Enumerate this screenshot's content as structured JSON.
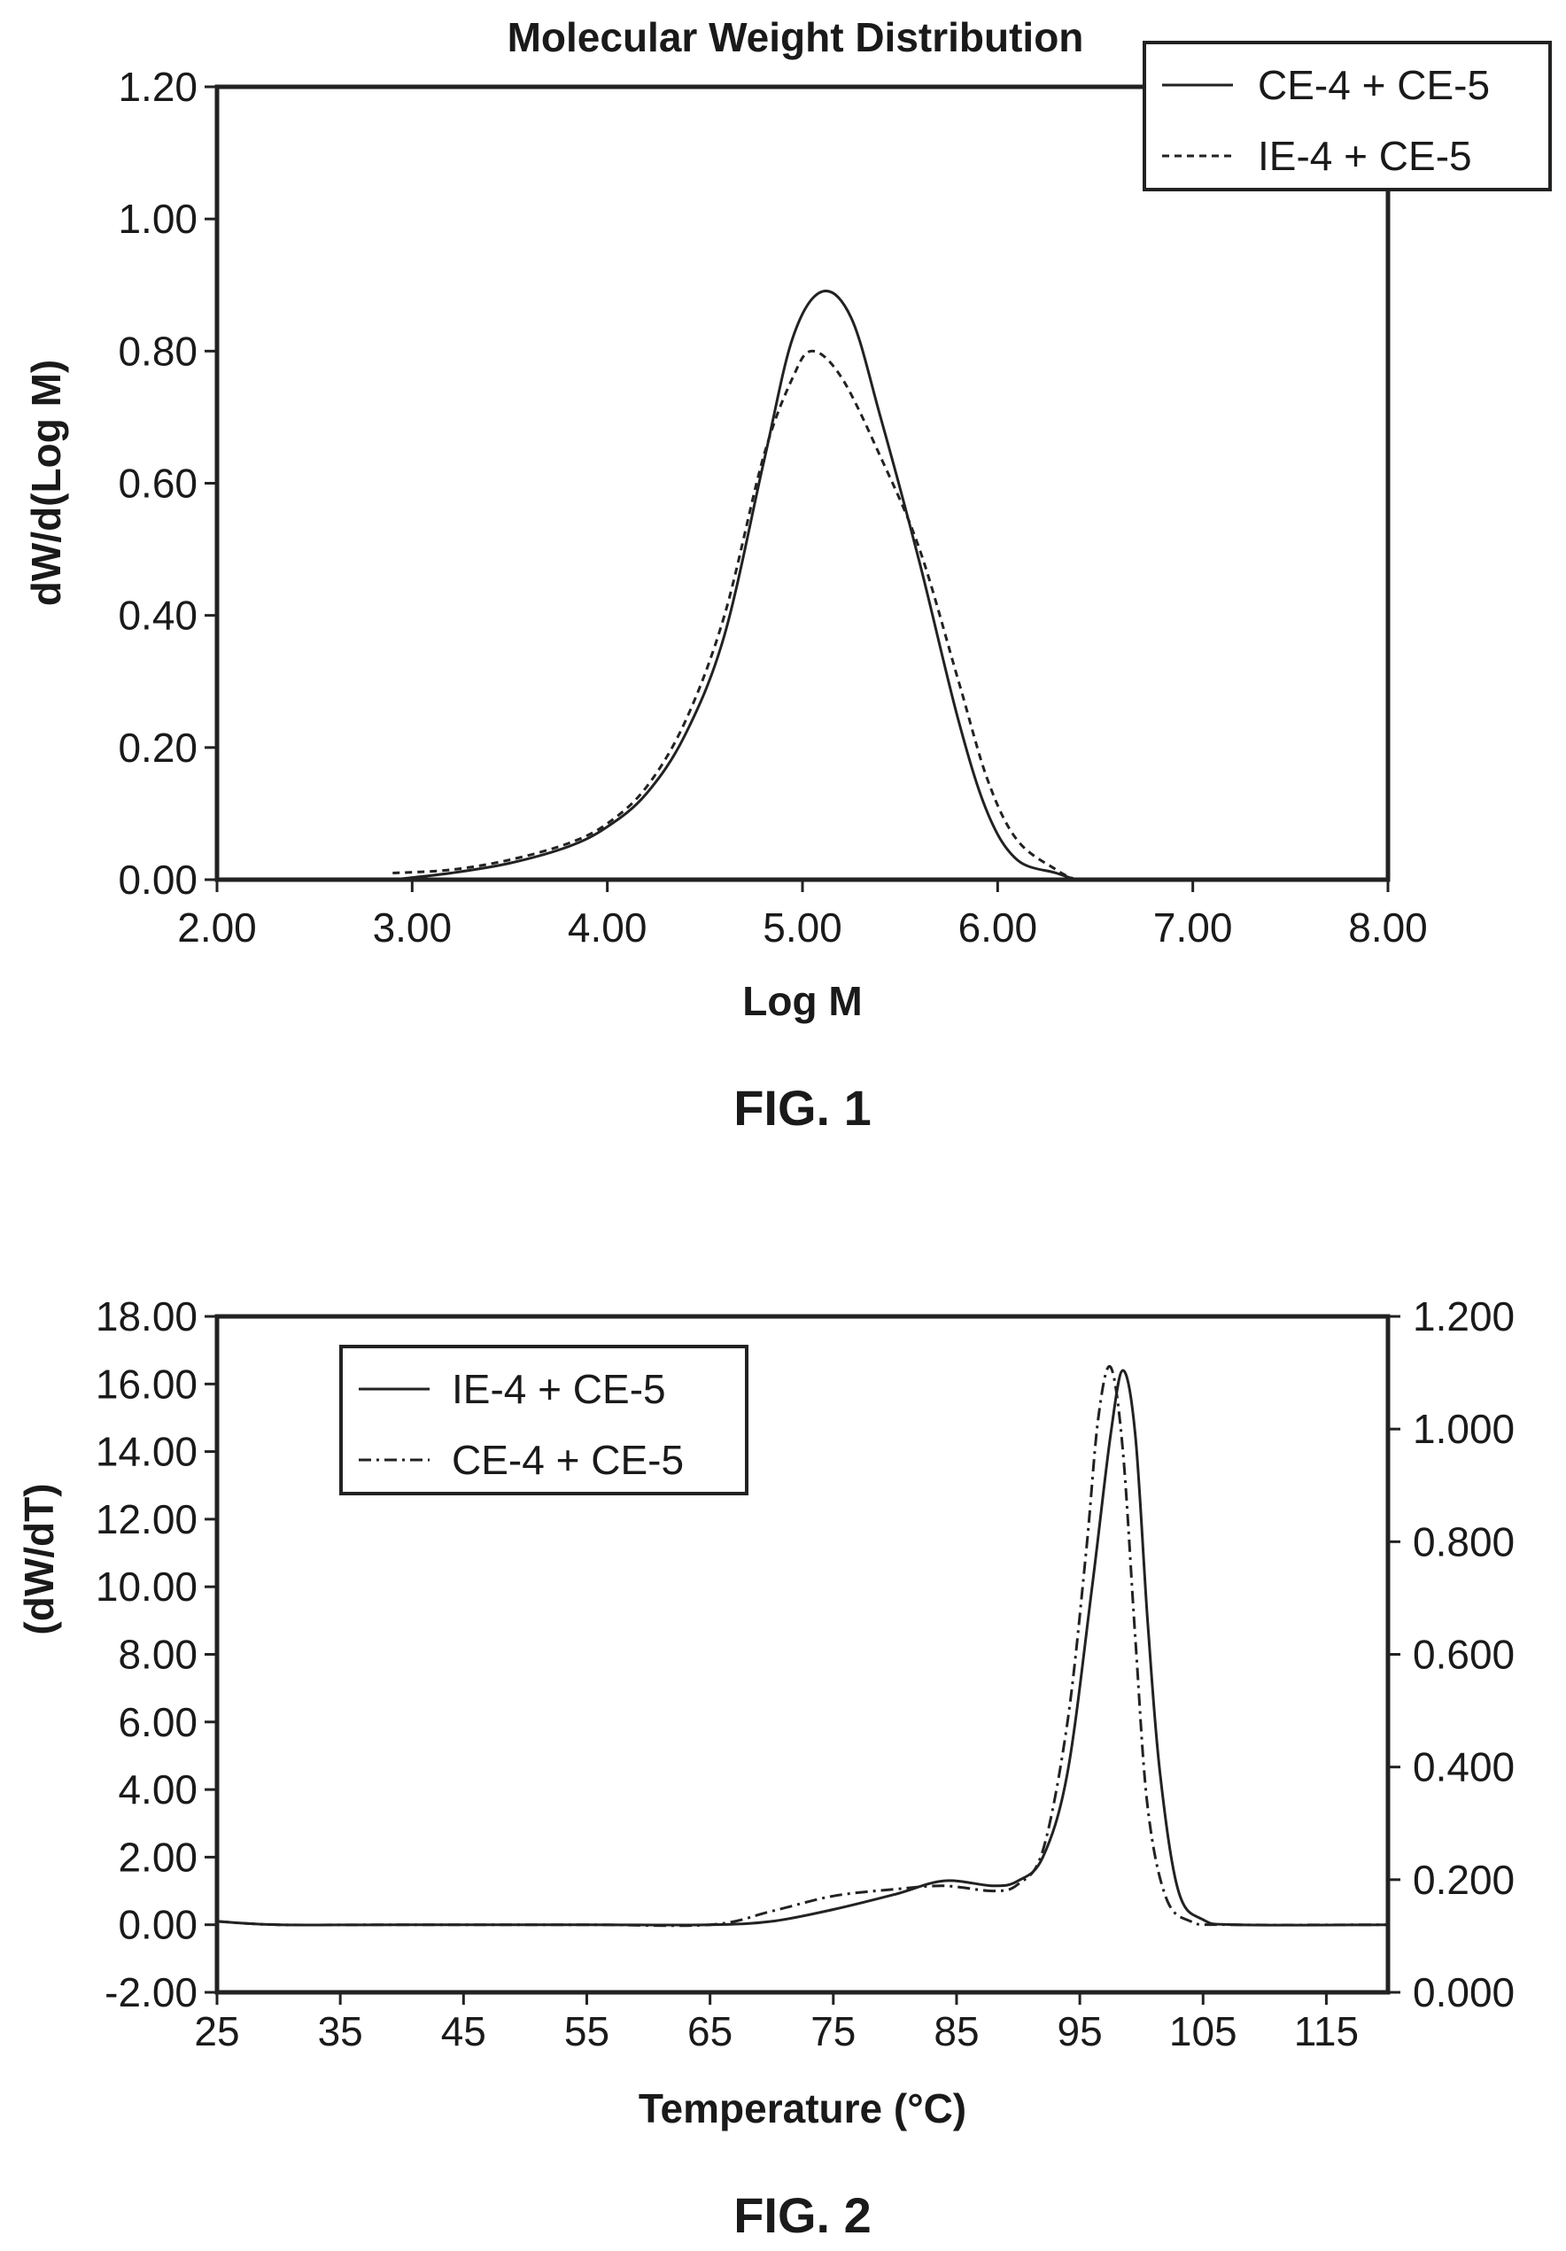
{
  "charts": {
    "fig1": {
      "fig_label": "FIG. 1"
    },
    "fig2": {
      "fig_label": "FIG. 2"
    }
  },
  "chart_data": [
    {
      "type": "line",
      "title": "Molecular Weight Distribution",
      "xlabel": "Log M",
      "ylabel": "dW/d(Log M)",
      "xlim": [
        2.0,
        8.0
      ],
      "ylim": [
        0.0,
        1.2
      ],
      "xticks": [
        "2.00",
        "3.00",
        "4.00",
        "5.00",
        "6.00",
        "7.00",
        "8.00"
      ],
      "yticks": [
        "0.00",
        "0.20",
        "0.40",
        "0.60",
        "0.80",
        "1.00",
        "1.20"
      ],
      "grid": false,
      "legend": "top-right",
      "series": [
        {
          "name": "CE-4 + CE-5",
          "style": "solid",
          "x": [
            2.9,
            3.2,
            3.5,
            3.8,
            4.0,
            4.2,
            4.4,
            4.6,
            4.8,
            4.95,
            5.1,
            5.25,
            5.4,
            5.6,
            5.8,
            5.95,
            6.1,
            6.3,
            6.4
          ],
          "y": [
            0.0,
            0.01,
            0.025,
            0.05,
            0.08,
            0.13,
            0.22,
            0.37,
            0.63,
            0.82,
            0.89,
            0.85,
            0.7,
            0.48,
            0.24,
            0.1,
            0.03,
            0.01,
            0.0
          ]
        },
        {
          "name": "IE-4 + CE-5",
          "style": "dashed",
          "x": [
            2.9,
            3.2,
            3.5,
            3.8,
            4.0,
            4.2,
            4.4,
            4.6,
            4.8,
            4.95,
            5.05,
            5.2,
            5.4,
            5.6,
            5.8,
            5.95,
            6.1,
            6.3,
            6.4
          ],
          "y": [
            0.01,
            0.015,
            0.03,
            0.055,
            0.085,
            0.14,
            0.24,
            0.4,
            0.64,
            0.76,
            0.8,
            0.76,
            0.64,
            0.5,
            0.3,
            0.15,
            0.06,
            0.015,
            0.0
          ]
        }
      ]
    },
    {
      "type": "line",
      "xlabel": "Temperature (°C)",
      "ylabel": "(dW/dT)",
      "xlim": [
        25,
        120
      ],
      "ylim": [
        -2.0,
        18.0
      ],
      "y2lim": [
        0.0,
        1.2
      ],
      "xticks": [
        "25",
        "35",
        "45",
        "55",
        "65",
        "75",
        "85",
        "95",
        "105",
        "115"
      ],
      "yticks": [
        "-2.00",
        "0.00",
        "2.00",
        "4.00",
        "6.00",
        "8.00",
        "10.00",
        "12.00",
        "14.00",
        "16.00",
        "18.00"
      ],
      "y2ticks": [
        "0.000",
        "0.200",
        "0.400",
        "0.600",
        "0.800",
        "1.000",
        "1.200"
      ],
      "grid": false,
      "legend": "top-left",
      "series": [
        {
          "name": "IE-4 + CE-5",
          "style": "solid",
          "x": [
            25,
            30,
            40,
            55,
            65,
            70,
            75,
            80,
            84,
            88,
            90,
            92,
            94,
            96,
            97.5,
            98.5,
            99.5,
            100.5,
            101.5,
            103,
            105,
            108,
            120
          ],
          "y": [
            0.1,
            0.0,
            0.0,
            0.0,
            0.0,
            0.1,
            0.45,
            0.9,
            1.3,
            1.15,
            1.3,
            2.0,
            4.5,
            10.0,
            14.5,
            16.4,
            14.5,
            9.0,
            4.5,
            1.0,
            0.15,
            0.0,
            0.0
          ]
        },
        {
          "name": "CE-4 + CE-5",
          "style": "dashdot",
          "x": [
            25,
            30,
            40,
            55,
            65,
            70,
            75,
            80,
            84,
            88,
            90,
            92,
            94,
            95.5,
            96.5,
            97.5,
            98.5,
            99.5,
            100.5,
            102,
            104,
            107,
            120
          ],
          "y": [
            0.1,
            0.0,
            0.0,
            0.0,
            0.0,
            0.4,
            0.85,
            1.05,
            1.15,
            1.0,
            1.2,
            2.2,
            6.0,
            11.0,
            15.0,
            16.5,
            14.0,
            8.5,
            3.5,
            0.8,
            0.1,
            0.0,
            0.0
          ]
        }
      ]
    }
  ]
}
